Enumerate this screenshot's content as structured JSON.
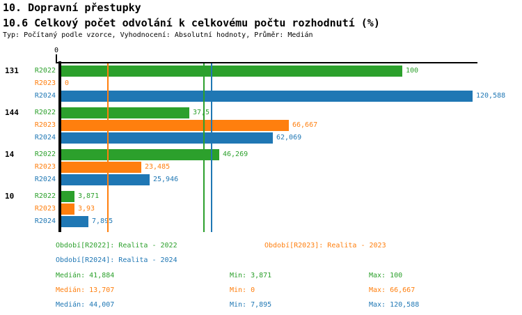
{
  "header": {
    "title_line1": "10. Dopravní přestupky",
    "title_line2": "10.6 Celkový počet odvolání k celkovému počtu rozhodnutí (%)",
    "subtitle": "Typ: Počítaný podle vzorce, Vyhodnocení: Absolutní hodnoty, Průměr: Medián"
  },
  "chart_data": {
    "type": "bar",
    "orientation": "horizontal",
    "axis": {
      "origin_tick_label": "0",
      "xlim": [
        0,
        122
      ],
      "grid": false
    },
    "series": [
      {
        "id": "R2022",
        "name": "Realita - 2022",
        "color": "#2ca02c"
      },
      {
        "id": "R2023",
        "name": "Realita - 2023",
        "color": "#ff7f0e"
      },
      {
        "id": "R2024",
        "name": "Realita - 2024",
        "color": "#1f77b4"
      }
    ],
    "groups": [
      {
        "label": "131",
        "bars": [
          {
            "series": "R2022",
            "value": 100,
            "value_label": "100"
          },
          {
            "series": "R2023",
            "value": 0,
            "value_label": "0"
          },
          {
            "series": "R2024",
            "value": 120.588,
            "value_label": "120,588"
          }
        ]
      },
      {
        "label": "144",
        "bars": [
          {
            "series": "R2022",
            "value": 37.5,
            "value_label": "37,5"
          },
          {
            "series": "R2023",
            "value": 66.667,
            "value_label": "66,667"
          },
          {
            "series": "R2024",
            "value": 62.069,
            "value_label": "62,069"
          }
        ]
      },
      {
        "label": "14",
        "bars": [
          {
            "series": "R2022",
            "value": 46.269,
            "value_label": "46,269"
          },
          {
            "series": "R2023",
            "value": 23.485,
            "value_label": "23,485"
          },
          {
            "series": "R2024",
            "value": 25.946,
            "value_label": "25,946"
          }
        ]
      },
      {
        "label": "10",
        "bars": [
          {
            "series": "R2022",
            "value": 3.871,
            "value_label": "3,871"
          },
          {
            "series": "R2023",
            "value": 3.93,
            "value_label": "3,93"
          },
          {
            "series": "R2024",
            "value": 7.895,
            "value_label": "7,895"
          }
        ]
      }
    ],
    "median_lines": [
      {
        "series": "R2022",
        "value": 41.884,
        "color": "#2ca02c"
      },
      {
        "series": "R2023",
        "value": 13.707,
        "color": "#ff7f0e"
      },
      {
        "series": "R2024",
        "value": 44.007,
        "color": "#1f77b4"
      }
    ]
  },
  "legend": {
    "items": [
      {
        "series": "R2022",
        "label": "Období[R2022]: Realita - 2022"
      },
      {
        "series": "R2023",
        "label": "Období[R2023]: Realita - 2023"
      },
      {
        "series": "R2024",
        "label": "Období[R2024]: Realita - 2024"
      }
    ]
  },
  "stats": {
    "rows": [
      {
        "series": "R2022",
        "median": "Medián: 41,884",
        "min": "Min: 3,871",
        "max": "Max: 100"
      },
      {
        "series": "R2023",
        "median": "Medián: 13,707",
        "min": "Min: 0",
        "max": "Max: 66,667"
      },
      {
        "series": "R2024",
        "median": "Medián: 44,007",
        "min": "Min: 7,895",
        "max": "Max: 120,588"
      }
    ]
  },
  "colors": {
    "R2022": "#2ca02c",
    "R2023": "#ff7f0e",
    "R2024": "#1f77b4",
    "axis": "#000000",
    "text": "#000000"
  }
}
